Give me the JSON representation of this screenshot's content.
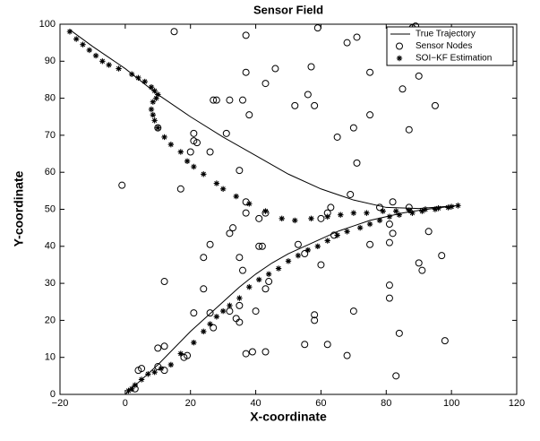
{
  "chart_data": {
    "type": "scatter",
    "title": "Sensor Field",
    "x_label": "X-coordinate",
    "y_label": "Y-coordinate",
    "xlim": [
      -20,
      120
    ],
    "ylim": [
      0,
      100
    ],
    "xticks": [
      {
        "value": -20,
        "label": "−20"
      },
      0,
      20,
      40,
      60,
      80,
      100,
      120
    ],
    "yticks": [
      0,
      10,
      20,
      30,
      40,
      50,
      60,
      70,
      80,
      90,
      100
    ],
    "grid": false,
    "legend": "upper right",
    "series": [
      {
        "name": "True Trajectory",
        "kind": "line",
        "color": "#000000",
        "x": [
          0,
          5,
          10,
          15,
          20,
          25,
          30,
          35,
          40,
          45,
          50,
          55,
          60,
          65,
          70,
          75,
          80,
          85,
          90,
          95,
          102,
          90,
          80,
          70,
          60,
          50,
          40,
          30,
          20,
          10,
          0,
          -10,
          -17
        ],
        "values": [
          0,
          4,
          8,
          12.5,
          17,
          21,
          25,
          29,
          32.5,
          35.5,
          38,
          40,
          42,
          44,
          45.5,
          47,
          48,
          49,
          49.7,
          50.3,
          51,
          50.2,
          50.5,
          52.5,
          55.5,
          59.5,
          64.5,
          69.5,
          75,
          81,
          88,
          94,
          98.5
        ]
      },
      {
        "name": "Sensor Nodes",
        "kind": "circle",
        "color": "#000000",
        "x": [
          15,
          37,
          59,
          68,
          71,
          88,
          89,
          90,
          37,
          46,
          57,
          75,
          43,
          32,
          28,
          27,
          36,
          56,
          58,
          85,
          90,
          95,
          38,
          52,
          75,
          10,
          21,
          21,
          22,
          26,
          31,
          65,
          70,
          87,
          20,
          71,
          35,
          -1,
          17,
          37,
          69,
          78,
          82,
          87,
          37,
          41,
          43,
          33,
          32,
          26,
          24,
          35,
          41,
          42,
          53,
          62,
          60,
          63,
          64,
          75,
          81,
          82,
          81,
          93,
          36,
          44,
          43,
          12,
          24,
          35,
          55,
          60,
          90,
          91,
          97,
          26,
          32,
          34,
          35,
          27,
          40,
          58,
          58,
          70,
          81,
          81,
          21,
          18,
          19,
          10,
          12,
          10,
          12,
          4,
          5,
          3,
          37,
          39,
          43,
          55,
          62,
          68,
          84,
          98,
          83
        ],
        "values": [
          98,
          97,
          99,
          95,
          96.5,
          99,
          99.5,
          97.5,
          87,
          88,
          88.5,
          87,
          84,
          79.5,
          79.5,
          79.5,
          79.5,
          81,
          78,
          82.5,
          86,
          78,
          75.5,
          78,
          75.5,
          72,
          70.5,
          68.5,
          68,
          65.5,
          70.5,
          69.5,
          72,
          71.5,
          65.5,
          62.5,
          60.5,
          56.5,
          55.5,
          52,
          54,
          50.5,
          52,
          50.5,
          49,
          47.5,
          49,
          45,
          43.5,
          40.5,
          37,
          37,
          40,
          40,
          40.5,
          49,
          47.5,
          50.5,
          43,
          40.5,
          41,
          43.5,
          46,
          44,
          33.5,
          30.5,
          28.5,
          30.5,
          28.5,
          24,
          38,
          35,
          35.5,
          33.5,
          37.5,
          22,
          22.5,
          20.5,
          19.5,
          18,
          22.5,
          20,
          21.5,
          22.5,
          29.5,
          26,
          22,
          10,
          10.5,
          12.5,
          13,
          7.5,
          6.5,
          6.5,
          7,
          1.5,
          11,
          11.5,
          11.5,
          13.5,
          13.5,
          10.5,
          16.5,
          14.5,
          5
        ]
      },
      {
        "name": "SOI−KF Estimation",
        "kind": "asterisk",
        "color": "#000000",
        "x": [
          -17,
          -15,
          -13,
          -11,
          -9,
          -7,
          -5,
          -2,
          2,
          4,
          6,
          8,
          9,
          10,
          9.5,
          8.5,
          8,
          8.5,
          9,
          10,
          12,
          14,
          17,
          19,
          21,
          24,
          28,
          30,
          34,
          38,
          43,
          48,
          52,
          57,
          62,
          66,
          70,
          74,
          79,
          83,
          87,
          92,
          96,
          100,
          102,
          1,
          2,
          3,
          5,
          7,
          9,
          11,
          14,
          17,
          21,
          24,
          26,
          28,
          30,
          32,
          35,
          38,
          41,
          44,
          47,
          50,
          53,
          56,
          59,
          62,
          65,
          68,
          72,
          75,
          78,
          81,
          84,
          88,
          91,
          95,
          99
        ],
        "values": [
          98,
          96,
          94.5,
          93,
          91.5,
          90,
          89,
          88,
          86.5,
          85.5,
          84.5,
          83,
          82,
          81,
          80,
          79,
          77,
          75.5,
          74,
          72,
          69.5,
          67.5,
          65.5,
          63,
          61.5,
          59.5,
          57,
          55.5,
          53.5,
          51.5,
          49.5,
          47.5,
          47,
          47.5,
          48,
          48.5,
          49,
          49,
          49.5,
          49.5,
          49.7,
          50,
          50.3,
          50.7,
          51,
          1,
          1.5,
          2.5,
          4,
          5.5,
          6,
          7,
          8,
          11,
          14,
          17,
          19,
          21,
          22.5,
          24,
          26,
          29,
          31,
          32.5,
          34,
          36,
          37.5,
          39,
          40,
          41.5,
          43,
          44,
          45,
          46,
          47,
          48,
          48.5,
          49,
          49.5,
          50,
          50.5
        ]
      }
    ]
  }
}
